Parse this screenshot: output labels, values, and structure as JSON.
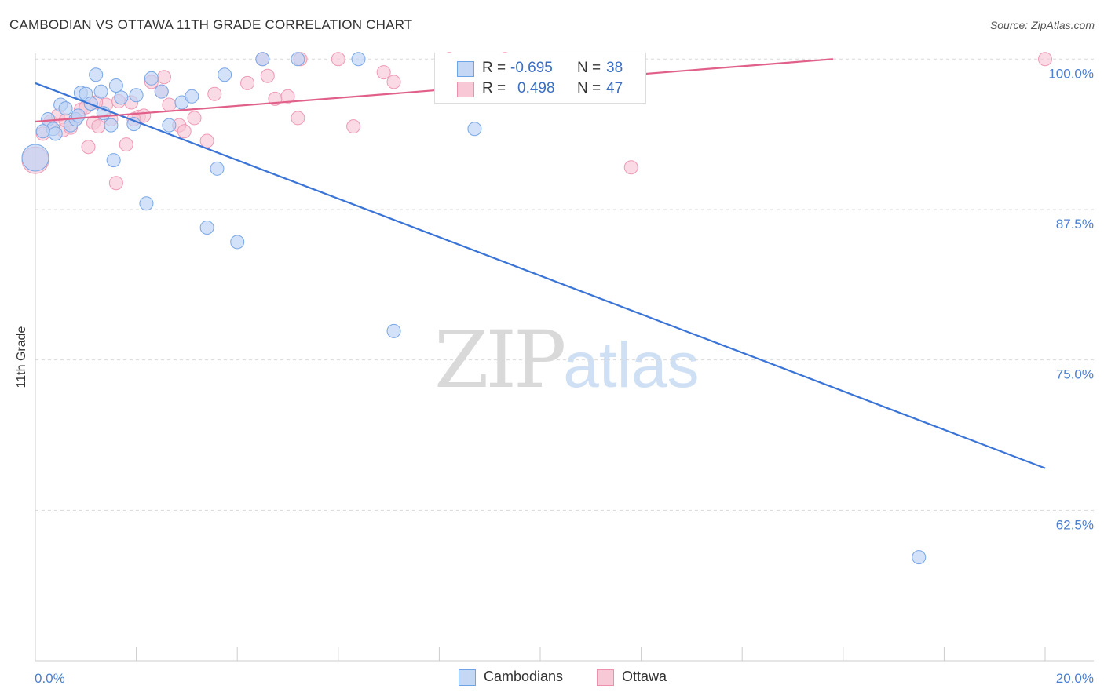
{
  "header": {
    "title": "CAMBODIAN VS OTTAWA 11TH GRADE CORRELATION CHART",
    "source": "Source: ZipAtlas.com"
  },
  "watermark": {
    "zip": "ZIP",
    "atlas": "atlas"
  },
  "legend": {
    "r_label": "R =",
    "n_label": "N =",
    "rows": [
      {
        "r": "-0.695",
        "n": "38",
        "color": "#6fa3e8",
        "fill": "#c4d8f5"
      },
      {
        "r": "0.498",
        "n": "47",
        "color": "#ef8fae",
        "fill": "#f8c8d6"
      }
    ]
  },
  "bottom_legend": {
    "cambodians": "Cambodians",
    "ottawa": "Ottawa"
  },
  "colors": {
    "blue": "#3a74d6",
    "blue_fill": "#bcd3f4",
    "pink": "#e0608a",
    "pink_fill": "#f7c6d5",
    "grid": "#d9d9d9",
    "tick_text": "#4a7fd0"
  },
  "chart_data": {
    "type": "scatter",
    "title": "CAMBODIAN VS OTTAWA 11TH GRADE CORRELATION CHART",
    "xlabel": "",
    "ylabel": "11th Grade",
    "xlim": [
      0.0,
      20.0
    ],
    "ylim": [
      50.0,
      100.8
    ],
    "x_tick_labels": [
      "0.0%",
      "20.0%"
    ],
    "y_ticks": [
      100.0,
      87.5,
      75.0,
      62.5
    ],
    "y_tick_labels": [
      "100.0%",
      "87.5%",
      "75.0%",
      "62.5%"
    ],
    "series": [
      {
        "name": "Cambodians",
        "r": -0.695,
        "n": 38,
        "trend": {
          "x": [
            0.0,
            20.0
          ],
          "y": [
            98.0,
            66.0
          ]
        },
        "points": [
          {
            "x": 0.0,
            "y": 91.8,
            "big": true
          },
          {
            "x": 0.25,
            "y": 95.0
          },
          {
            "x": 0.35,
            "y": 94.2
          },
          {
            "x": 0.4,
            "y": 93.8
          },
          {
            "x": 0.5,
            "y": 96.2
          },
          {
            "x": 0.6,
            "y": 95.9
          },
          {
            "x": 0.7,
            "y": 94.5
          },
          {
            "x": 0.8,
            "y": 95.0
          },
          {
            "x": 0.85,
            "y": 95.3
          },
          {
            "x": 0.9,
            "y": 97.2
          },
          {
            "x": 1.0,
            "y": 97.1
          },
          {
            "x": 1.1,
            "y": 96.3
          },
          {
            "x": 1.2,
            "y": 98.7
          },
          {
            "x": 1.3,
            "y": 97.3
          },
          {
            "x": 1.35,
            "y": 95.5
          },
          {
            "x": 1.5,
            "y": 94.5
          },
          {
            "x": 1.6,
            "y": 97.8
          },
          {
            "x": 1.7,
            "y": 96.8
          },
          {
            "x": 1.95,
            "y": 94.6
          },
          {
            "x": 2.0,
            "y": 97.0
          },
          {
            "x": 2.3,
            "y": 98.4
          },
          {
            "x": 2.5,
            "y": 97.3
          },
          {
            "x": 2.65,
            "y": 94.5
          },
          {
            "x": 2.9,
            "y": 96.4
          },
          {
            "x": 3.1,
            "y": 96.9
          },
          {
            "x": 3.75,
            "y": 98.7
          },
          {
            "x": 4.5,
            "y": 100.0
          },
          {
            "x": 5.2,
            "y": 100.0
          },
          {
            "x": 6.4,
            "y": 100.0
          },
          {
            "x": 1.55,
            "y": 91.6
          },
          {
            "x": 2.2,
            "y": 88.0
          },
          {
            "x": 3.6,
            "y": 90.9
          },
          {
            "x": 3.4,
            "y": 86.0
          },
          {
            "x": 4.0,
            "y": 84.8
          },
          {
            "x": 7.1,
            "y": 77.4
          },
          {
            "x": 8.7,
            "y": 94.2
          },
          {
            "x": 17.5,
            "y": 58.6
          },
          {
            "x": 0.15,
            "y": 94.0
          }
        ]
      },
      {
        "name": "Ottawa",
        "r": 0.498,
        "n": 47,
        "trend": {
          "x": [
            0.0,
            15.8
          ],
          "y": [
            94.8,
            100.0
          ]
        },
        "points": [
          {
            "x": 0.0,
            "y": 91.6,
            "big": true
          },
          {
            "x": 0.15,
            "y": 93.8
          },
          {
            "x": 0.3,
            "y": 94.8
          },
          {
            "x": 0.45,
            "y": 95.3
          },
          {
            "x": 0.55,
            "y": 94.1
          },
          {
            "x": 0.7,
            "y": 94.3
          },
          {
            "x": 0.8,
            "y": 95.0
          },
          {
            "x": 0.9,
            "y": 95.8
          },
          {
            "x": 1.0,
            "y": 96.0
          },
          {
            "x": 1.05,
            "y": 92.7
          },
          {
            "x": 1.15,
            "y": 94.7
          },
          {
            "x": 1.25,
            "y": 94.4
          },
          {
            "x": 1.4,
            "y": 96.2
          },
          {
            "x": 1.5,
            "y": 95.0
          },
          {
            "x": 1.65,
            "y": 96.5
          },
          {
            "x": 1.8,
            "y": 92.9
          },
          {
            "x": 1.9,
            "y": 96.4
          },
          {
            "x": 2.05,
            "y": 95.2
          },
          {
            "x": 2.15,
            "y": 95.3
          },
          {
            "x": 2.3,
            "y": 98.1
          },
          {
            "x": 2.5,
            "y": 97.3
          },
          {
            "x": 2.55,
            "y": 98.5
          },
          {
            "x": 2.65,
            "y": 96.2
          },
          {
            "x": 2.85,
            "y": 94.5
          },
          {
            "x": 2.95,
            "y": 94.0
          },
          {
            "x": 3.15,
            "y": 95.1
          },
          {
            "x": 3.4,
            "y": 93.2
          },
          {
            "x": 3.55,
            "y": 97.1
          },
          {
            "x": 4.2,
            "y": 98.0
          },
          {
            "x": 4.6,
            "y": 98.6
          },
          {
            "x": 4.75,
            "y": 96.7
          },
          {
            "x": 5.0,
            "y": 96.9
          },
          {
            "x": 5.2,
            "y": 95.1
          },
          {
            "x": 5.25,
            "y": 100.0
          },
          {
            "x": 6.0,
            "y": 100.0
          },
          {
            "x": 6.3,
            "y": 94.4
          },
          {
            "x": 6.9,
            "y": 98.9
          },
          {
            "x": 7.1,
            "y": 98.1
          },
          {
            "x": 8.2,
            "y": 100.0
          },
          {
            "x": 9.3,
            "y": 100.0
          },
          {
            "x": 11.8,
            "y": 91.0
          },
          {
            "x": 20.0,
            "y": 100.0
          },
          {
            "x": 1.6,
            "y": 89.7
          },
          {
            "x": 4.5,
            "y": 100.0
          },
          {
            "x": 0.6,
            "y": 94.9
          },
          {
            "x": 1.95,
            "y": 95.0
          },
          {
            "x": 1.2,
            "y": 96.4
          }
        ]
      }
    ]
  }
}
